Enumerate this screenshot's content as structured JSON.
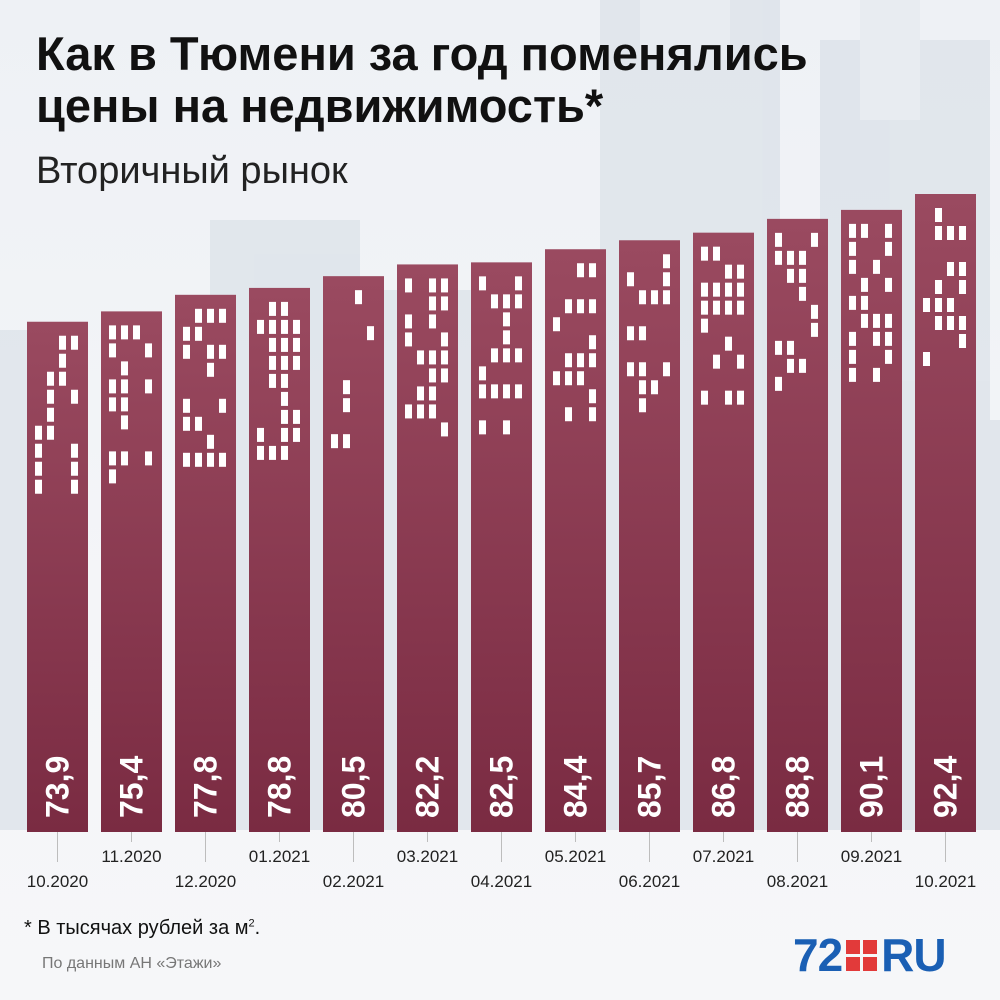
{
  "title": "Как в Тюмени за год поменялись цены на недвижимость*",
  "subtitle": "Вторичный рынок",
  "footnote": {
    "text": "* В тысячах рублей за м",
    "sup": "2",
    "end": "."
  },
  "source": "По данным АН «Этажи»",
  "logo": {
    "num": "72",
    "ru": "RU"
  },
  "colors": {
    "bar_top": "#9a4a60",
    "bar_bottom": "#7a2b42",
    "window": "#ffffff",
    "text": "#111111",
    "logo_blue": "#1a5fb4",
    "logo_red": "#e23a3a"
  },
  "chart_data": {
    "type": "bar",
    "categories": [
      "10.2020",
      "11.2020",
      "12.2020",
      "01.2021",
      "02.2021",
      "03.2021",
      "04.2021",
      "05.2021",
      "06.2021",
      "07.2021",
      "08.2021",
      "09.2021",
      "10.2021"
    ],
    "values": [
      73.9,
      75.4,
      77.8,
      78.8,
      80.5,
      82.2,
      82.5,
      84.4,
      85.7,
      86.8,
      88.8,
      90.1,
      92.4
    ],
    "value_labels": [
      "73,9",
      "75,4",
      "77,8",
      "78,8",
      "80,5",
      "82,2",
      "82,5",
      "84,4",
      "85,7",
      "86,8",
      "88,8",
      "90,1",
      "92,4"
    ],
    "ylim": [
      0,
      92.4
    ],
    "grid": false,
    "legend": "none",
    "x_labels_staggered": true
  }
}
